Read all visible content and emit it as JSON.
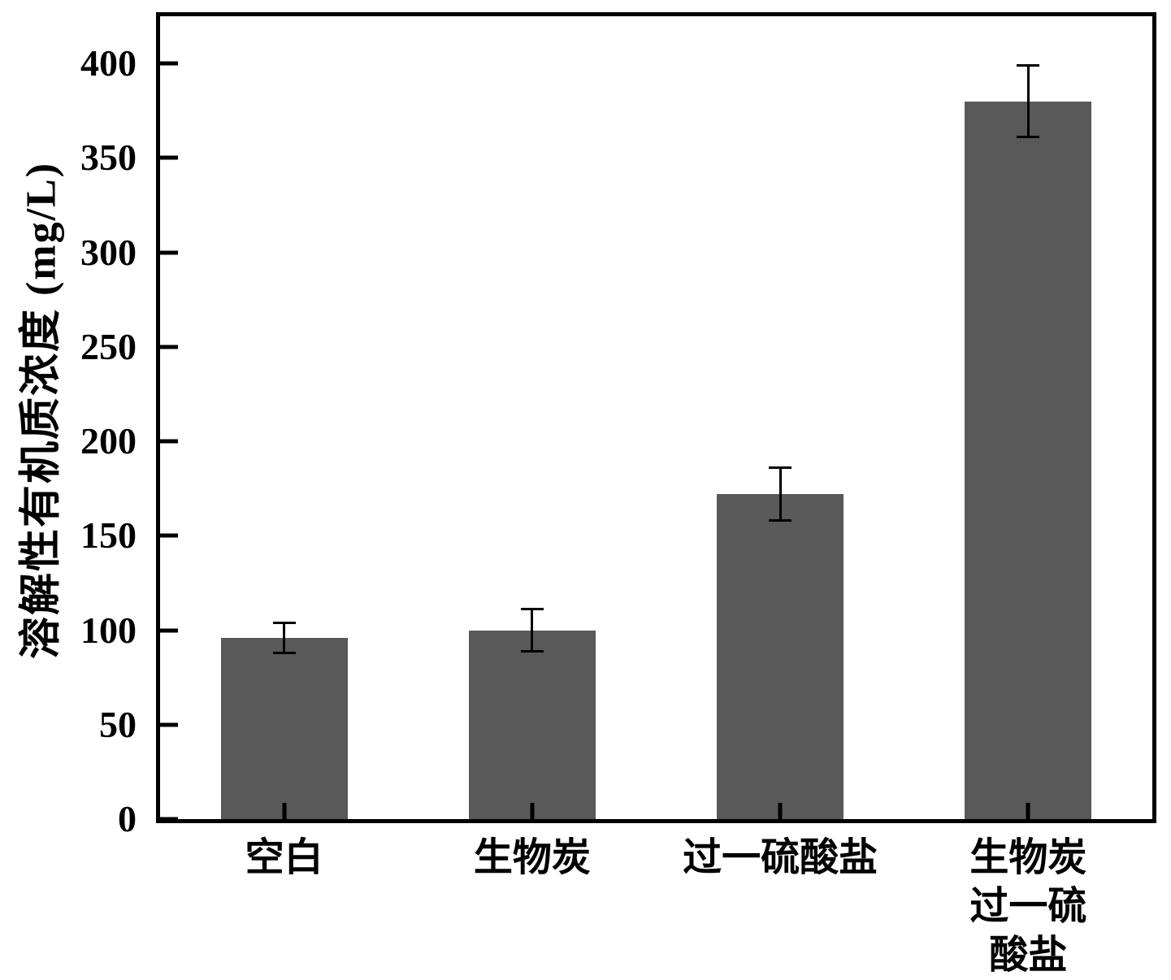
{
  "chart_data": {
    "type": "bar",
    "title": "",
    "ylabel": "溶解性有机质浓度 (mg/L)",
    "xlabel": "",
    "categories": [
      "空白",
      "生物炭",
      "过一硫酸盐",
      "生物炭\n过一硫酸盐"
    ],
    "values": [
      96,
      100,
      172,
      380
    ],
    "errors": [
      8,
      11,
      14,
      19
    ],
    "yticks": [
      0,
      50,
      100,
      150,
      200,
      250,
      300,
      350,
      400
    ],
    "ylim": [
      0,
      425
    ],
    "grid": false,
    "legend": "none",
    "bar_color": "#595959",
    "axis_color": "#000000"
  }
}
